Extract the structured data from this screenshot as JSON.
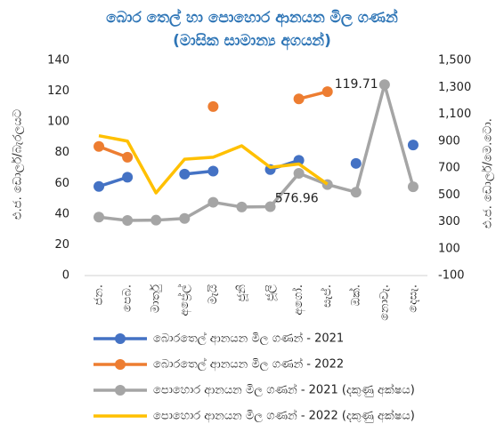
{
  "chart_data": {
    "type": "line",
    "title": "බොර තෙල් හා පොහොර ආනයන මිල ගණන්",
    "subtitle": "(මාසික සාමාන්‍ය අගයන්)",
    "ylabel": "එ.ජ. ඩොලර්/බැරලයට",
    "y2label": "එ.ජ. ඩොලර්/මෙ.ටො.",
    "categories": [
      "ජන.",
      "පෙබ.",
      "මාර්තු",
      "අප්‍රේල්",
      "මැයි",
      "ජූනි",
      "ජූලි",
      "අගෝ.",
      "සැප්.",
      "ඔක්.",
      "නොවැ.",
      "දෙසැ."
    ],
    "ylim": [
      0,
      140
    ],
    "yticks": [
      0,
      20,
      40,
      60,
      80,
      100,
      120,
      140
    ],
    "y2lim": [
      -100,
      1500
    ],
    "y2ticks": [
      -100,
      100,
      300,
      500,
      700,
      900,
      {
        "value": 1100,
        "label": "1,100"
      },
      {
        "value": 1300,
        "label": "1,300"
      },
      {
        "value": 1500,
        "label": "1,500"
      }
    ],
    "series": [
      {
        "name": "බොරතෙල් ආනයන මිල ගණන් - 2021",
        "color": "#4472c4",
        "markers": true,
        "values": [
          58,
          64,
          null,
          66,
          68,
          null,
          69,
          75,
          null,
          73,
          null,
          85
        ]
      },
      {
        "name": "බොරතෙල් ආනයන මිල ගණන් - 2022",
        "color": "#ed7d31",
        "markers": true,
        "values": [
          84,
          77,
          null,
          null,
          110,
          null,
          null,
          115,
          119.71,
          null,
          null,
          null
        ],
        "value_labels": [
          null,
          null,
          null,
          null,
          null,
          null,
          null,
          null,
          "119.71",
          null,
          null,
          null
        ]
      },
      {
        "name": "පොහොර ආනයන මිල ගණන් - 2021 (දකුණු අක්ෂය)",
        "color": "#a5a5a5",
        "markers": true,
        "axis": "y2",
        "values": [
          335,
          310,
          312,
          325,
          445,
          410,
          412,
          660,
          576.96,
          520,
          1320,
          560
        ],
        "value_labels": [
          null,
          null,
          null,
          null,
          null,
          null,
          null,
          null,
          "576.96",
          null,
          null,
          null
        ]
      },
      {
        "name": "පොහොර ආනයන මිල ගණන් - 2022 (දකුණු අක්ෂය)",
        "color": "#ffc000",
        "markers": false,
        "axis": "y2",
        "values": [
          940,
          900,
          515,
          765,
          780,
          865,
          705,
          730,
          580,
          null,
          null,
          null
        ]
      }
    ]
  }
}
